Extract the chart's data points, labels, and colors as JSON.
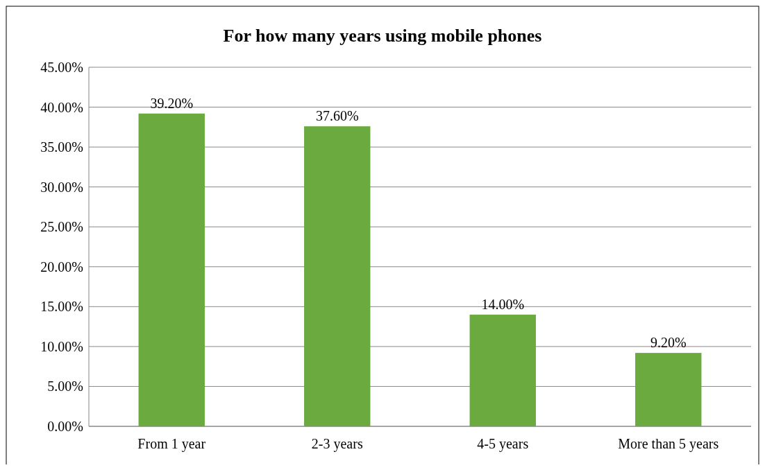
{
  "chart_data": {
    "type": "bar",
    "title": "For how many years using mobile phones",
    "categories": [
      "From 1 year",
      "2-3 years",
      "4-5 years",
      "More than 5 years"
    ],
    "values": [
      39.2,
      37.6,
      14.0,
      9.2
    ],
    "value_labels": [
      "39.20%",
      "37.60%",
      "14.00%",
      "9.20%"
    ],
    "color": "#6aaa3e",
    "ylim": [
      0,
      45
    ],
    "yticks": [
      {
        "value": 0,
        "label": "0.00%"
      },
      {
        "value": 5,
        "label": "5.00%"
      },
      {
        "value": 10,
        "label": "10.00%"
      },
      {
        "value": 15,
        "label": "15.00%"
      },
      {
        "value": 20,
        "label": "20.00%"
      },
      {
        "value": 25,
        "label": "25.00%"
      },
      {
        "value": 30,
        "label": "30.00%"
      },
      {
        "value": 35,
        "label": "35.00%"
      },
      {
        "value": 40,
        "label": "40.00%"
      },
      {
        "value": 45,
        "label": "45.00%"
      }
    ],
    "grid": "y"
  }
}
